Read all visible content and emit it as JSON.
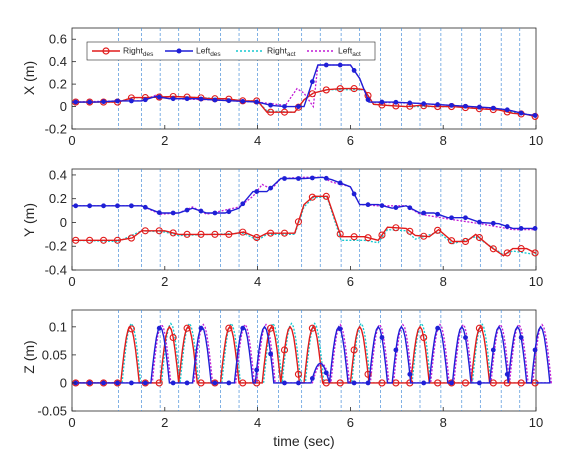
{
  "chart_data": [
    {
      "type": "line",
      "id": "x",
      "ylabel": "X (m)",
      "xlim": [
        0,
        10
      ],
      "ylim": [
        -0.2,
        0.7
      ],
      "xticks": [
        "0",
        "2",
        "4",
        "6",
        "8",
        "10"
      ],
      "yticks": [
        "-0.2",
        "0",
        "0.2",
        "0.4",
        "0.6"
      ],
      "ytick_values": [
        -0.2,
        0,
        0.2,
        0.4,
        0.6
      ],
      "legend": {
        "placement": "top-left",
        "entries": [
          {
            "series": "right_des",
            "label": "Right",
            "sub": "des"
          },
          {
            "series": "left_des",
            "label": "Left",
            "sub": "des"
          },
          {
            "series": "right_act",
            "label": "Right",
            "sub": "act"
          },
          {
            "series": "left_act",
            "label": "Left",
            "sub": "act"
          }
        ]
      },
      "series": {
        "right_des": [
          [
            0,
            0.04
          ],
          [
            0.5,
            0.04
          ],
          [
            1.0,
            0.04
          ],
          [
            1.3,
            0.08
          ],
          [
            1.6,
            0.08
          ],
          [
            2.2,
            0.09
          ],
          [
            2.7,
            0.08
          ],
          [
            3.0,
            0.07
          ],
          [
            3.3,
            0.07
          ],
          [
            3.7,
            0.05
          ],
          [
            4.0,
            0.05
          ],
          [
            4.2,
            -0.05
          ],
          [
            4.5,
            -0.05
          ],
          [
            4.8,
            -0.05
          ],
          [
            5.0,
            0.06
          ],
          [
            5.2,
            0.12
          ],
          [
            5.5,
            0.15
          ],
          [
            5.8,
            0.16
          ],
          [
            6.1,
            0.16
          ],
          [
            6.3,
            0.15
          ],
          [
            6.5,
            0.02
          ],
          [
            6.8,
            0.01
          ],
          [
            7.2,
            0.0
          ],
          [
            7.5,
            0.01
          ],
          [
            7.8,
            0.0
          ],
          [
            8.2,
            0.0
          ],
          [
            8.5,
            -0.01
          ],
          [
            8.8,
            -0.02
          ],
          [
            9.2,
            -0.03
          ],
          [
            9.5,
            -0.06
          ],
          [
            9.8,
            -0.07
          ],
          [
            10,
            -0.09
          ]
        ],
        "left_des": [
          [
            0,
            0.04
          ],
          [
            0.5,
            0.04
          ],
          [
            1.0,
            0.05
          ],
          [
            1.5,
            0.05
          ],
          [
            1.8,
            0.09
          ],
          [
            2.1,
            0.07
          ],
          [
            2.7,
            0.07
          ],
          [
            3.0,
            0.06
          ],
          [
            3.5,
            0.05
          ],
          [
            4.0,
            0.04
          ],
          [
            4.3,
            0.01
          ],
          [
            4.6,
            0.0
          ],
          [
            5.0,
            0.0
          ],
          [
            5.3,
            0.37
          ],
          [
            5.6,
            0.37
          ],
          [
            5.8,
            0.37
          ],
          [
            6.0,
            0.37
          ],
          [
            6.2,
            0.25
          ],
          [
            6.4,
            0.04
          ],
          [
            6.9,
            0.04
          ],
          [
            7.4,
            0.03
          ],
          [
            7.8,
            0.02
          ],
          [
            8.2,
            0.01
          ],
          [
            8.6,
            0.0
          ],
          [
            9.0,
            -0.01
          ],
          [
            9.4,
            -0.03
          ],
          [
            9.8,
            -0.07
          ],
          [
            10,
            -0.08
          ]
        ],
        "right_act": [
          [
            0,
            0.04
          ],
          [
            1.0,
            0.04
          ],
          [
            1.3,
            0.08
          ],
          [
            1.6,
            0.08
          ],
          [
            2.2,
            0.09
          ],
          [
            2.7,
            0.08
          ],
          [
            3.3,
            0.07
          ],
          [
            3.7,
            0.05
          ],
          [
            4.0,
            0.05
          ],
          [
            4.2,
            -0.04
          ],
          [
            4.8,
            -0.05
          ],
          [
            5.0,
            0.06
          ],
          [
            5.2,
            0.12
          ],
          [
            5.5,
            0.15
          ],
          [
            6.3,
            0.15
          ],
          [
            6.5,
            0.02
          ],
          [
            7.2,
            0.0
          ],
          [
            8.2,
            0.0
          ],
          [
            9.2,
            -0.03
          ],
          [
            9.8,
            -0.07
          ],
          [
            10,
            -0.09
          ]
        ],
        "left_act": [
          [
            0,
            0.04
          ],
          [
            1.0,
            0.05
          ],
          [
            1.5,
            0.05
          ],
          [
            1.8,
            0.1
          ],
          [
            2.1,
            0.07
          ],
          [
            3.0,
            0.06
          ],
          [
            4.0,
            0.04
          ],
          [
            4.6,
            0.01
          ],
          [
            4.85,
            0.16
          ],
          [
            5.0,
            0.12
          ],
          [
            5.2,
            0.0
          ],
          [
            5.3,
            0.37
          ],
          [
            6.0,
            0.37
          ],
          [
            6.2,
            0.25
          ],
          [
            6.4,
            0.04
          ],
          [
            7.4,
            0.03
          ],
          [
            8.6,
            0.0
          ],
          [
            9.4,
            -0.03
          ],
          [
            9.8,
            -0.07
          ],
          [
            10,
            -0.08
          ]
        ]
      }
    },
    {
      "type": "line",
      "id": "y",
      "ylabel": "Y (m)",
      "xlim": [
        0,
        10
      ],
      "ylim": [
        -0.4,
        0.45
      ],
      "xticks": [
        "0",
        "2",
        "4",
        "6",
        "8",
        "10"
      ],
      "yticks": [
        "-0.4",
        "-0.2",
        "0",
        "0.2",
        "0.4"
      ],
      "ytick_values": [
        -0.4,
        -0.2,
        0,
        0.2,
        0.4
      ],
      "series": {
        "right_des": [
          [
            0,
            -0.15
          ],
          [
            1.0,
            -0.15
          ],
          [
            1.3,
            -0.13
          ],
          [
            1.5,
            -0.07
          ],
          [
            2.0,
            -0.07
          ],
          [
            2.3,
            -0.1
          ],
          [
            2.7,
            -0.1
          ],
          [
            3.0,
            -0.1
          ],
          [
            3.4,
            -0.1
          ],
          [
            3.7,
            -0.08
          ],
          [
            4.0,
            -0.13
          ],
          [
            4.2,
            -0.09
          ],
          [
            4.5,
            -0.09
          ],
          [
            4.8,
            -0.09
          ],
          [
            5.0,
            0.15
          ],
          [
            5.2,
            0.22
          ],
          [
            5.5,
            0.22
          ],
          [
            5.8,
            -0.12
          ],
          [
            6.3,
            -0.12
          ],
          [
            6.6,
            -0.15
          ],
          [
            6.8,
            -0.04
          ],
          [
            7.2,
            -0.05
          ],
          [
            7.4,
            -0.11
          ],
          [
            7.7,
            -0.12
          ],
          [
            7.9,
            -0.06
          ],
          [
            8.2,
            -0.16
          ],
          [
            8.5,
            -0.16
          ],
          [
            8.7,
            -0.1
          ],
          [
            9.0,
            -0.2
          ],
          [
            9.3,
            -0.28
          ],
          [
            9.5,
            -0.22
          ],
          [
            9.8,
            -0.22
          ],
          [
            10,
            -0.26
          ]
        ],
        "left_des": [
          [
            0,
            0.14
          ],
          [
            1.0,
            0.14
          ],
          [
            1.5,
            0.14
          ],
          [
            1.9,
            0.08
          ],
          [
            2.3,
            0.08
          ],
          [
            2.6,
            0.12
          ],
          [
            2.9,
            0.08
          ],
          [
            3.3,
            0.08
          ],
          [
            3.6,
            0.12
          ],
          [
            3.9,
            0.26
          ],
          [
            4.2,
            0.26
          ],
          [
            4.5,
            0.37
          ],
          [
            5.0,
            0.37
          ],
          [
            5.4,
            0.38
          ],
          [
            5.6,
            0.36
          ],
          [
            6.0,
            0.3
          ],
          [
            6.2,
            0.15
          ],
          [
            6.6,
            0.15
          ],
          [
            6.9,
            0.12
          ],
          [
            7.2,
            0.14
          ],
          [
            7.5,
            0.08
          ],
          [
            7.8,
            0.08
          ],
          [
            8.1,
            0.04
          ],
          [
            8.5,
            0.04
          ],
          [
            8.8,
            0.0
          ],
          [
            9.2,
            -0.01
          ],
          [
            9.5,
            -0.05
          ],
          [
            10,
            -0.05
          ]
        ],
        "right_act": [
          [
            0,
            -0.15
          ],
          [
            1.0,
            -0.16
          ],
          [
            1.5,
            -0.07
          ],
          [
            2.0,
            -0.08
          ],
          [
            2.3,
            -0.11
          ],
          [
            3.7,
            -0.09
          ],
          [
            4.0,
            -0.15
          ],
          [
            4.2,
            -0.1
          ],
          [
            4.8,
            -0.1
          ],
          [
            5.0,
            0.13
          ],
          [
            5.2,
            0.21
          ],
          [
            5.5,
            0.21
          ],
          [
            5.8,
            -0.15
          ],
          [
            6.3,
            -0.15
          ],
          [
            6.6,
            -0.17
          ],
          [
            6.8,
            -0.06
          ],
          [
            7.2,
            -0.07
          ],
          [
            7.4,
            -0.14
          ],
          [
            7.9,
            -0.08
          ],
          [
            8.2,
            -0.18
          ],
          [
            8.7,
            -0.12
          ],
          [
            9.3,
            -0.27
          ],
          [
            9.5,
            -0.24
          ],
          [
            10,
            -0.27
          ]
        ],
        "left_act": [
          [
            0,
            0.14
          ],
          [
            1.5,
            0.14
          ],
          [
            1.9,
            0.07
          ],
          [
            2.3,
            0.08
          ],
          [
            2.6,
            0.13
          ],
          [
            2.9,
            0.07
          ],
          [
            3.6,
            0.13
          ],
          [
            3.9,
            0.22
          ],
          [
            4.1,
            0.32
          ],
          [
            4.3,
            0.28
          ],
          [
            4.5,
            0.37
          ],
          [
            5.0,
            0.38
          ],
          [
            5.4,
            0.38
          ],
          [
            5.6,
            0.34
          ],
          [
            6.0,
            0.3
          ],
          [
            6.2,
            0.15
          ],
          [
            6.6,
            0.14
          ],
          [
            7.2,
            0.14
          ],
          [
            7.5,
            0.07
          ],
          [
            8.1,
            0.03
          ],
          [
            8.8,
            -0.01
          ],
          [
            9.5,
            -0.06
          ],
          [
            10,
            -0.06
          ]
        ]
      }
    },
    {
      "type": "line",
      "id": "z",
      "ylabel": "Z (m)",
      "xlabel": "time (sec)",
      "xlim": [
        0,
        10
      ],
      "ylim": [
        -0.05,
        0.13
      ],
      "xticks": [
        "0",
        "2",
        "4",
        "6",
        "8",
        "10"
      ],
      "yticks": [
        "-0.05",
        "0",
        "0.05",
        "0.1"
      ],
      "ytick_values": [
        -0.05,
        0,
        0.05,
        0.1
      ],
      "right_steps": [
        1.05,
        1.9,
        2.3,
        3.2,
        4.1,
        4.5,
        5.0,
        6.0,
        7.3,
        8.6
      ],
      "left_steps": [
        1.7,
        2.6,
        3.5,
        3.95,
        5.55,
        6.4,
        6.9,
        7.7,
        8.2,
        9.0,
        9.4,
        9.9
      ],
      "left_small_steps": [
        5.15
      ],
      "step_duration": 0.4,
      "step_height": 0.1,
      "small_step_height": 0.035
    }
  ],
  "vertical_gridlines": [
    1.0,
    1.5,
    1.9,
    2.3,
    2.75,
    3.2,
    3.6,
    4.0,
    4.45,
    4.95,
    5.35,
    5.8,
    6.2,
    6.65,
    7.1,
    7.5,
    7.95,
    8.4,
    8.8,
    9.25,
    9.65
  ],
  "colors": {
    "right_des": "#e11b1b",
    "left_des": "#1f1fd6",
    "right_act": "#16c8d0",
    "left_act": "#c11cd6",
    "gridline": "#4a90d9"
  }
}
